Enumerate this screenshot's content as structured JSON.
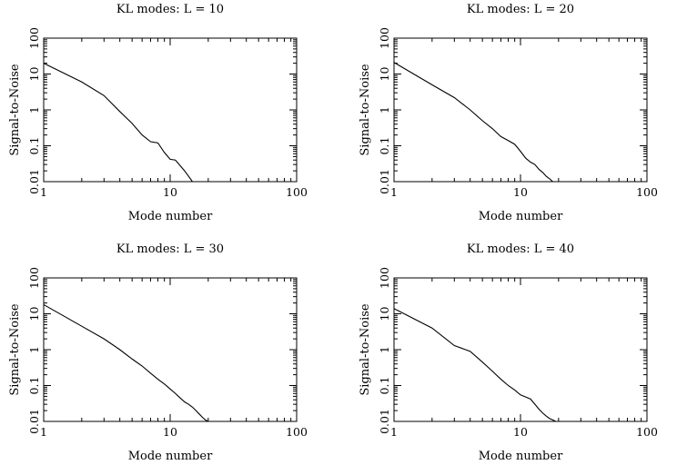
{
  "chart_data": [
    {
      "type": "line",
      "title": "KL modes: L = 10",
      "xlabel": "Mode number",
      "ylabel": "Signal-to-Noise",
      "xscale": "log",
      "yscale": "log",
      "xlim": [
        1,
        100
      ],
      "ylim": [
        0.01,
        100
      ],
      "xticklabels": [
        "1",
        "10",
        "100"
      ],
      "yticklabels": [
        "0.01",
        "0.1",
        "1",
        "10",
        "100"
      ],
      "series": [
        {
          "x": [
            1,
            2,
            3,
            4,
            5,
            6,
            7,
            8,
            9,
            10,
            11,
            12,
            13,
            14,
            15
          ],
          "y": [
            20,
            6,
            2.5,
            0.9,
            0.42,
            0.2,
            0.13,
            0.12,
            0.065,
            0.042,
            0.04,
            0.028,
            0.02,
            0.014,
            0.01
          ]
        }
      ]
    },
    {
      "type": "line",
      "title": "KL modes: L = 20",
      "xlabel": "Mode number",
      "ylabel": "Signal-to-Noise",
      "xscale": "log",
      "yscale": "log",
      "xlim": [
        1,
        100
      ],
      "ylim": [
        0.01,
        100
      ],
      "xticklabels": [
        "1",
        "10",
        "100"
      ],
      "yticklabels": [
        "0.01",
        "0.1",
        "1",
        "10",
        "100"
      ],
      "series": [
        {
          "x": [
            1,
            2,
            3,
            4,
            5,
            6,
            7,
            8,
            9,
            10,
            11,
            12,
            13,
            14,
            15,
            16,
            17,
            18
          ],
          "y": [
            21,
            5,
            2.2,
            1.0,
            0.5,
            0.3,
            0.18,
            0.14,
            0.11,
            0.07,
            0.045,
            0.035,
            0.03,
            0.022,
            0.018,
            0.014,
            0.012,
            0.01
          ]
        }
      ]
    },
    {
      "type": "line",
      "title": "KL modes: L = 30",
      "xlabel": "Mode number",
      "ylabel": "Signal-to-Noise",
      "xscale": "log",
      "yscale": "log",
      "xlim": [
        1,
        100
      ],
      "ylim": [
        0.01,
        100
      ],
      "xticklabels": [
        "1",
        "10",
        "100"
      ],
      "yticklabels": [
        "0.01",
        "0.1",
        "1",
        "10",
        "100"
      ],
      "series": [
        {
          "x": [
            1,
            2,
            3,
            4,
            5,
            6,
            7,
            8,
            9,
            10,
            11,
            12,
            13,
            14,
            15,
            16,
            17,
            18,
            19,
            20
          ],
          "y": [
            18,
            4.5,
            2.0,
            1.0,
            0.55,
            0.35,
            0.22,
            0.15,
            0.11,
            0.08,
            0.06,
            0.045,
            0.035,
            0.03,
            0.025,
            0.02,
            0.016,
            0.013,
            0.011,
            0.01
          ]
        }
      ]
    },
    {
      "type": "line",
      "title": "KL modes: L = 40",
      "xlabel": "Mode number",
      "ylabel": "Signal-to-Noise",
      "xscale": "log",
      "yscale": "log",
      "xlim": [
        1,
        100
      ],
      "ylim": [
        0.01,
        100
      ],
      "xticklabels": [
        "1",
        "10",
        "100"
      ],
      "yticklabels": [
        "0.01",
        "0.1",
        "1",
        "10",
        "100"
      ],
      "series": [
        {
          "x": [
            1,
            2,
            3,
            4,
            5,
            6,
            7,
            8,
            9,
            10,
            11,
            12,
            13,
            14,
            15,
            16,
            17,
            18,
            19
          ],
          "y": [
            14,
            4.0,
            1.3,
            0.9,
            0.45,
            0.25,
            0.15,
            0.1,
            0.075,
            0.055,
            0.048,
            0.042,
            0.03,
            0.022,
            0.017,
            0.014,
            0.012,
            0.011,
            0.01
          ]
        }
      ]
    }
  ]
}
